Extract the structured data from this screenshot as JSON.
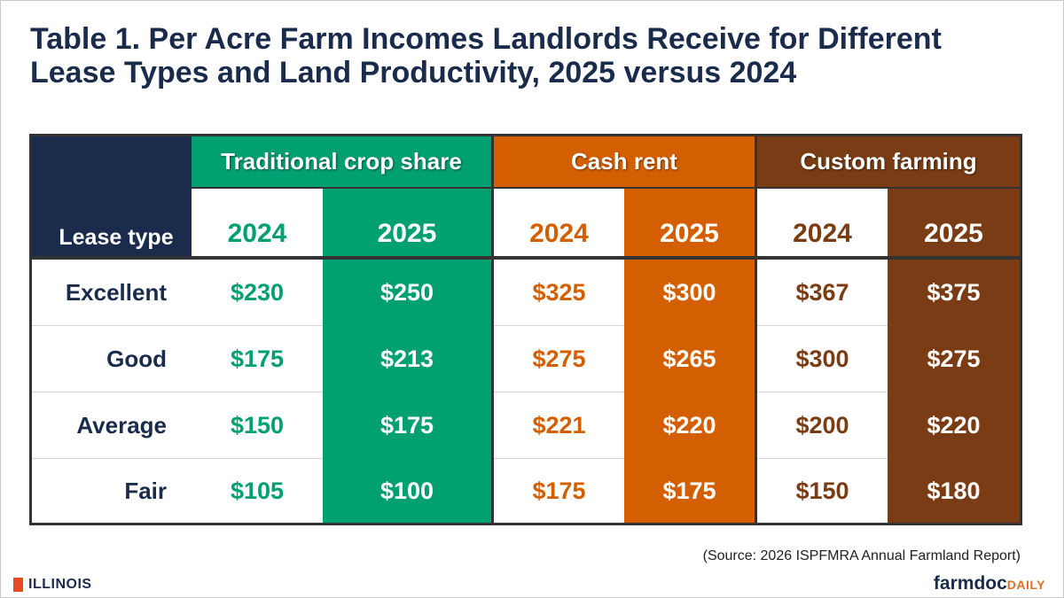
{
  "title": "Table 1. Per Acre Farm Incomes Landlords Receive for Different Lease Types and Land Productivity, 2025 versus 2024",
  "table": {
    "corner": "Lease type",
    "groups": [
      {
        "name": "Traditional crop share",
        "years": [
          "2024",
          "2025"
        ]
      },
      {
        "name": "Cash rent",
        "years": [
          "2024",
          "2025"
        ]
      },
      {
        "name": "Custom farming",
        "years": [
          "2024",
          "2025"
        ]
      }
    ],
    "rows": [
      {
        "label": "Excellent",
        "values": [
          "$230",
          "$250",
          "$325",
          "$300",
          "$367",
          "$375"
        ]
      },
      {
        "label": "Good",
        "values": [
          "$175",
          "$213",
          "$275",
          "$265",
          "$300",
          "$275"
        ]
      },
      {
        "label": "Average",
        "values": [
          "$150",
          "$175",
          "$221",
          "$220",
          "$200",
          "$220"
        ]
      },
      {
        "label": "Fair",
        "values": [
          "$105",
          "$100",
          "$175",
          "$175",
          "$150",
          "$180"
        ]
      }
    ]
  },
  "source": "(Source: 2026 ISPFMRA Annual Farmland Report)",
  "footer": {
    "left_logo": "ILLINOIS",
    "right_logo_main": "farmdoc",
    "right_logo_accent": "DAILY"
  }
}
